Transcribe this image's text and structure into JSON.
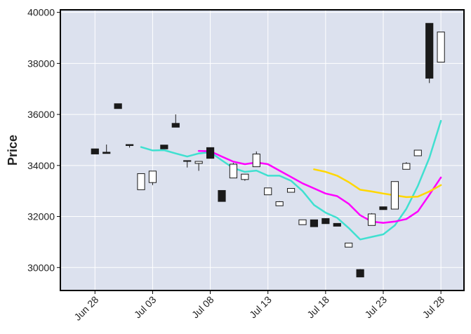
{
  "chart_data": {
    "type": "candlestick",
    "ylabel": "Price",
    "xlabel": "",
    "ylim": [
      29100,
      40100
    ],
    "xlim": [
      "2024-06-25",
      "2024-07-30"
    ],
    "grid": true,
    "colors": {
      "background": "#dce1ee",
      "grid": "#ffffff",
      "up_fill": "#ffffff",
      "down_fill": "#1a1a1a",
      "candle_edge": "#1a1a1a",
      "ma_short": "#40e0d0",
      "ma_mid": "#ff00ff",
      "ma_long": "#ffd700"
    },
    "x_ticks": [
      {
        "date": "2024-06-28",
        "label": "Jun 28"
      },
      {
        "date": "2024-07-03",
        "label": "Jul 03"
      },
      {
        "date": "2024-07-08",
        "label": "Jul 08"
      },
      {
        "date": "2024-07-13",
        "label": "Jul 13"
      },
      {
        "date": "2024-07-18",
        "label": "Jul 18"
      },
      {
        "date": "2024-07-23",
        "label": "Jul 23"
      },
      {
        "date": "2024-07-28",
        "label": "Jul 28"
      }
    ],
    "y_ticks": [
      {
        "value": 30000,
        "label": "30000"
      },
      {
        "value": 32000,
        "label": "32000"
      },
      {
        "value": 34000,
        "label": "34000"
      },
      {
        "value": 36000,
        "label": "36000"
      },
      {
        "value": 38000,
        "label": "38000"
      },
      {
        "value": 40000,
        "label": "40000"
      }
    ],
    "candles": [
      {
        "date": "2024-06-28",
        "open": 34650,
        "high": 34650,
        "low": 34450,
        "close": 34450
      },
      {
        "date": "2024-06-29",
        "open": 34520,
        "high": 34820,
        "low": 34470,
        "close": 34470
      },
      {
        "date": "2024-06-30",
        "open": 36420,
        "high": 36420,
        "low": 36230,
        "close": 36230
      },
      {
        "date": "2024-07-01",
        "open": 34820,
        "high": 34820,
        "low": 34700,
        "close": 34780
      },
      {
        "date": "2024-07-02",
        "open": 33050,
        "high": 33680,
        "low": 33050,
        "close": 33680
      },
      {
        "date": "2024-07-03",
        "open": 33330,
        "high": 33780,
        "low": 33230,
        "close": 33780
      },
      {
        "date": "2024-07-04",
        "open": 34800,
        "high": 34800,
        "low": 34650,
        "close": 34650
      },
      {
        "date": "2024-07-05",
        "open": 35650,
        "high": 36000,
        "low": 35500,
        "close": 35500
      },
      {
        "date": "2024-07-06",
        "open": 34190,
        "high": 34200,
        "low": 33920,
        "close": 34160
      },
      {
        "date": "2024-07-07",
        "open": 34080,
        "high": 34160,
        "low": 33790,
        "close": 34160
      },
      {
        "date": "2024-07-08",
        "open": 34700,
        "high": 34700,
        "low": 34280,
        "close": 34280
      },
      {
        "date": "2024-07-09",
        "open": 33020,
        "high": 33020,
        "low": 32590,
        "close": 32590
      },
      {
        "date": "2024-07-10",
        "open": 33510,
        "high": 34100,
        "low": 33510,
        "close": 34050
      },
      {
        "date": "2024-07-11",
        "open": 33450,
        "high": 33660,
        "low": 33400,
        "close": 33660
      },
      {
        "date": "2024-07-12",
        "open": 33950,
        "high": 34550,
        "low": 33950,
        "close": 34450
      },
      {
        "date": "2024-07-13",
        "open": 32850,
        "high": 33120,
        "low": 32850,
        "close": 33120
      },
      {
        "date": "2024-07-14",
        "open": 32420,
        "high": 32600,
        "low": 32420,
        "close": 32580
      },
      {
        "date": "2024-07-15",
        "open": 32950,
        "high": 33100,
        "low": 32950,
        "close": 33100
      },
      {
        "date": "2024-07-16",
        "open": 31680,
        "high": 31870,
        "low": 31680,
        "close": 31870
      },
      {
        "date": "2024-07-17",
        "open": 31870,
        "high": 31870,
        "low": 31600,
        "close": 31600
      },
      {
        "date": "2024-07-18",
        "open": 31920,
        "high": 31920,
        "low": 31720,
        "close": 31720
      },
      {
        "date": "2024-07-19",
        "open": 31730,
        "high": 31730,
        "low": 31620,
        "close": 31620
      },
      {
        "date": "2024-07-20",
        "open": 30800,
        "high": 30960,
        "low": 30800,
        "close": 30960
      },
      {
        "date": "2024-07-21",
        "open": 29920,
        "high": 29940,
        "low": 29630,
        "close": 29630
      },
      {
        "date": "2024-07-22",
        "open": 31650,
        "high": 32130,
        "low": 31650,
        "close": 32100
      },
      {
        "date": "2024-07-23",
        "open": 32380,
        "high": 32380,
        "low": 32270,
        "close": 32270
      },
      {
        "date": "2024-07-24",
        "open": 32290,
        "high": 33370,
        "low": 32290,
        "close": 33370
      },
      {
        "date": "2024-07-25",
        "open": 33850,
        "high": 34130,
        "low": 33850,
        "close": 34080
      },
      {
        "date": "2024-07-26",
        "open": 34380,
        "high": 34600,
        "low": 34380,
        "close": 34600
      },
      {
        "date": "2024-07-27",
        "open": 39570,
        "high": 39570,
        "low": 37230,
        "close": 37420
      },
      {
        "date": "2024-07-28",
        "open": 38050,
        "high": 39230,
        "low": 38050,
        "close": 39230
      }
    ],
    "series": [
      {
        "style": "line",
        "color": "#40e0d0",
        "points": [
          [
            "2024-07-02",
            34720
          ],
          [
            "2024-07-03",
            34590
          ],
          [
            "2024-07-04",
            34600
          ],
          [
            "2024-07-05",
            34470
          ],
          [
            "2024-07-06",
            34350
          ],
          [
            "2024-07-07",
            34470
          ],
          [
            "2024-07-08",
            34520
          ],
          [
            "2024-07-09",
            34200
          ],
          [
            "2024-07-10",
            33900
          ],
          [
            "2024-07-11",
            33750
          ],
          [
            "2024-07-12",
            33800
          ],
          [
            "2024-07-13",
            33600
          ],
          [
            "2024-07-14",
            33600
          ],
          [
            "2024-07-15",
            33400
          ],
          [
            "2024-07-16",
            33000
          ],
          [
            "2024-07-17",
            32450
          ],
          [
            "2024-07-18",
            32150
          ],
          [
            "2024-07-19",
            31950
          ],
          [
            "2024-07-20",
            31550
          ],
          [
            "2024-07-21",
            31100
          ],
          [
            "2024-07-22",
            31200
          ],
          [
            "2024-07-23",
            31300
          ],
          [
            "2024-07-24",
            31650
          ],
          [
            "2024-07-25",
            32300
          ],
          [
            "2024-07-26",
            33200
          ],
          [
            "2024-07-27",
            34300
          ],
          [
            "2024-07-28",
            35750
          ]
        ]
      },
      {
        "style": "line",
        "color": "#ff00ff",
        "points": [
          [
            "2024-07-07",
            34570
          ],
          [
            "2024-07-08",
            34560
          ],
          [
            "2024-07-09",
            34350
          ],
          [
            "2024-07-10",
            34150
          ],
          [
            "2024-07-11",
            34050
          ],
          [
            "2024-07-12",
            34120
          ],
          [
            "2024-07-13",
            34050
          ],
          [
            "2024-07-14",
            33800
          ],
          [
            "2024-07-15",
            33550
          ],
          [
            "2024-07-16",
            33300
          ],
          [
            "2024-07-17",
            33100
          ],
          [
            "2024-07-18",
            32900
          ],
          [
            "2024-07-19",
            32800
          ],
          [
            "2024-07-20",
            32500
          ],
          [
            "2024-07-21",
            32050
          ],
          [
            "2024-07-22",
            31800
          ],
          [
            "2024-07-23",
            31750
          ],
          [
            "2024-07-24",
            31800
          ],
          [
            "2024-07-25",
            31900
          ],
          [
            "2024-07-26",
            32200
          ],
          [
            "2024-07-27",
            32850
          ],
          [
            "2024-07-28",
            33530
          ]
        ]
      },
      {
        "style": "line",
        "color": "#ffd700",
        "points": [
          [
            "2024-07-17",
            33850
          ],
          [
            "2024-07-18",
            33750
          ],
          [
            "2024-07-19",
            33600
          ],
          [
            "2024-07-20",
            33350
          ],
          [
            "2024-07-21",
            33050
          ],
          [
            "2024-07-22",
            32980
          ],
          [
            "2024-07-23",
            32900
          ],
          [
            "2024-07-24",
            32830
          ],
          [
            "2024-07-25",
            32760
          ],
          [
            "2024-07-26",
            32780
          ],
          [
            "2024-07-27",
            32980
          ],
          [
            "2024-07-28",
            33230
          ]
        ]
      }
    ]
  }
}
